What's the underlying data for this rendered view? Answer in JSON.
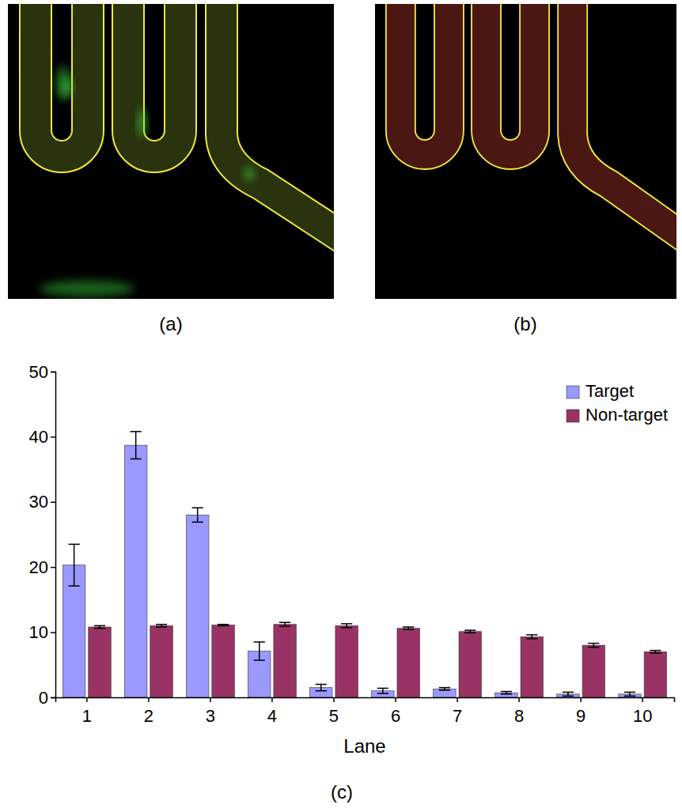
{
  "panel_labels": [
    "(a)",
    "(b)",
    "(c)"
  ],
  "chart_data": {
    "type": "bar",
    "x_label": "Lane",
    "categories": [
      "1",
      "2",
      "3",
      "4",
      "5",
      "6",
      "7",
      "8",
      "9",
      "10"
    ],
    "series": [
      {
        "name": "Target",
        "color": "#9999ff",
        "values": [
          20.3,
          38.7,
          28.0,
          7.1,
          1.5,
          1.0,
          1.3,
          0.7,
          0.5,
          0.5
        ],
        "errors": [
          3.2,
          2.1,
          1.1,
          1.4,
          0.5,
          0.4,
          0.2,
          0.2,
          0.3,
          0.3
        ]
      },
      {
        "name": "Non-target",
        "color": "#993366",
        "values": [
          10.8,
          11.0,
          11.1,
          11.2,
          11.0,
          10.6,
          10.1,
          9.3,
          8.0,
          7.0
        ],
        "errors": [
          0.2,
          0.2,
          0.1,
          0.3,
          0.3,
          0.2,
          0.2,
          0.3,
          0.3,
          0.2
        ]
      }
    ],
    "ylim": [
      0,
      50
    ],
    "yticks": [
      0,
      10,
      20,
      30,
      40,
      50
    ],
    "legend": "upper right"
  }
}
